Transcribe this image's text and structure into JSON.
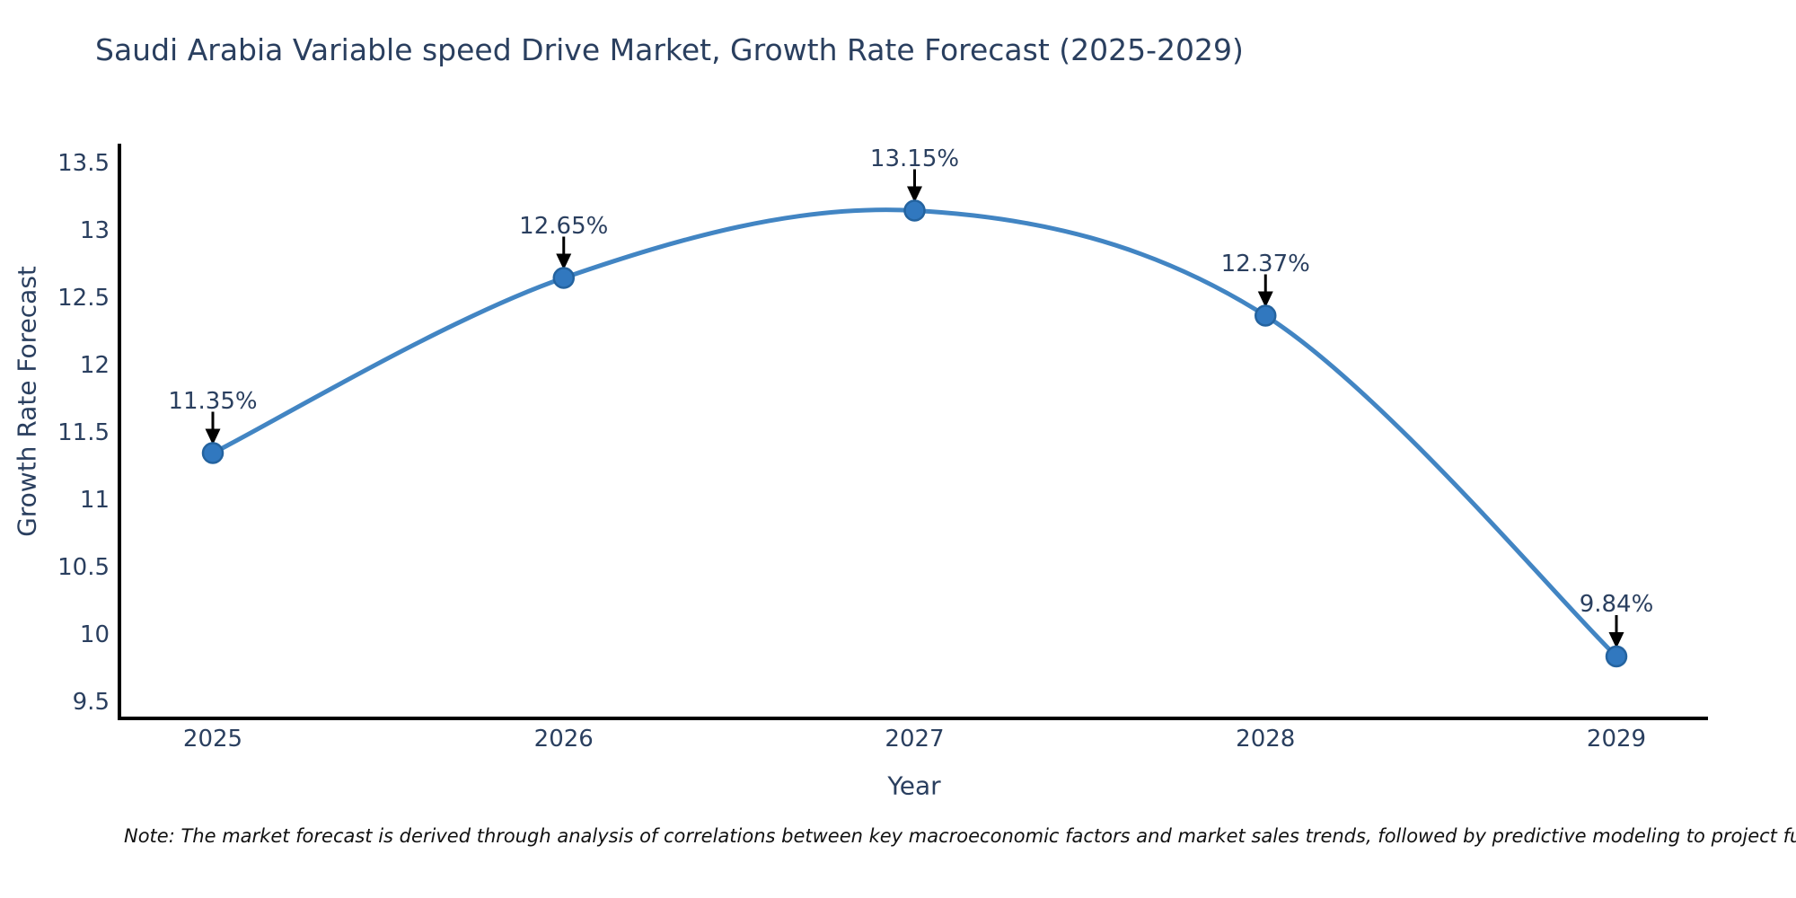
{
  "title": "Saudi Arabia Variable speed Drive Market, Growth Rate Forecast (2025-2029)",
  "note": "Note: The market forecast is derived through analysis of correlations between key macroeconomic factors and market sales trends, followed by predictive modeling to project future sales",
  "chart_data": {
    "type": "line",
    "title": "Saudi Arabia Variable speed Drive Market, Growth Rate Forecast (2025-2029)",
    "x": [
      2025,
      2026,
      2027,
      2028,
      2029
    ],
    "values": [
      11.35,
      12.65,
      13.15,
      12.37,
      9.84
    ],
    "point_labels": [
      "11.35%",
      "12.65%",
      "13.15%",
      "12.37%",
      "9.84%"
    ],
    "xlabel": "Year",
    "ylabel": "Growth Rate Forecast",
    "xticks": [
      "2025",
      "2026",
      "2027",
      "2028",
      "2029"
    ],
    "yticks": [
      "9.5",
      "10",
      "10.5",
      "11",
      "11.5",
      "12",
      "12.5",
      "13",
      "13.5"
    ],
    "ytick_values": [
      9.5,
      10,
      10.5,
      11,
      11.5,
      12,
      12.5,
      13,
      13.5
    ],
    "ylim": [
      9.38,
      13.65
    ],
    "xlim": [
      2024.73,
      2029.26
    ],
    "line_shape": "spline",
    "grid": false,
    "legend": "none",
    "annotations_have_arrows": true,
    "colors": {
      "line": "#4285c3",
      "marker_fill": "#3178bf",
      "marker_edge": "#24639f",
      "arrow": "#000000",
      "axis_line": "#000000",
      "text": "#2a3f5f",
      "note_text": "#111111",
      "background": "#ffffff"
    }
  }
}
